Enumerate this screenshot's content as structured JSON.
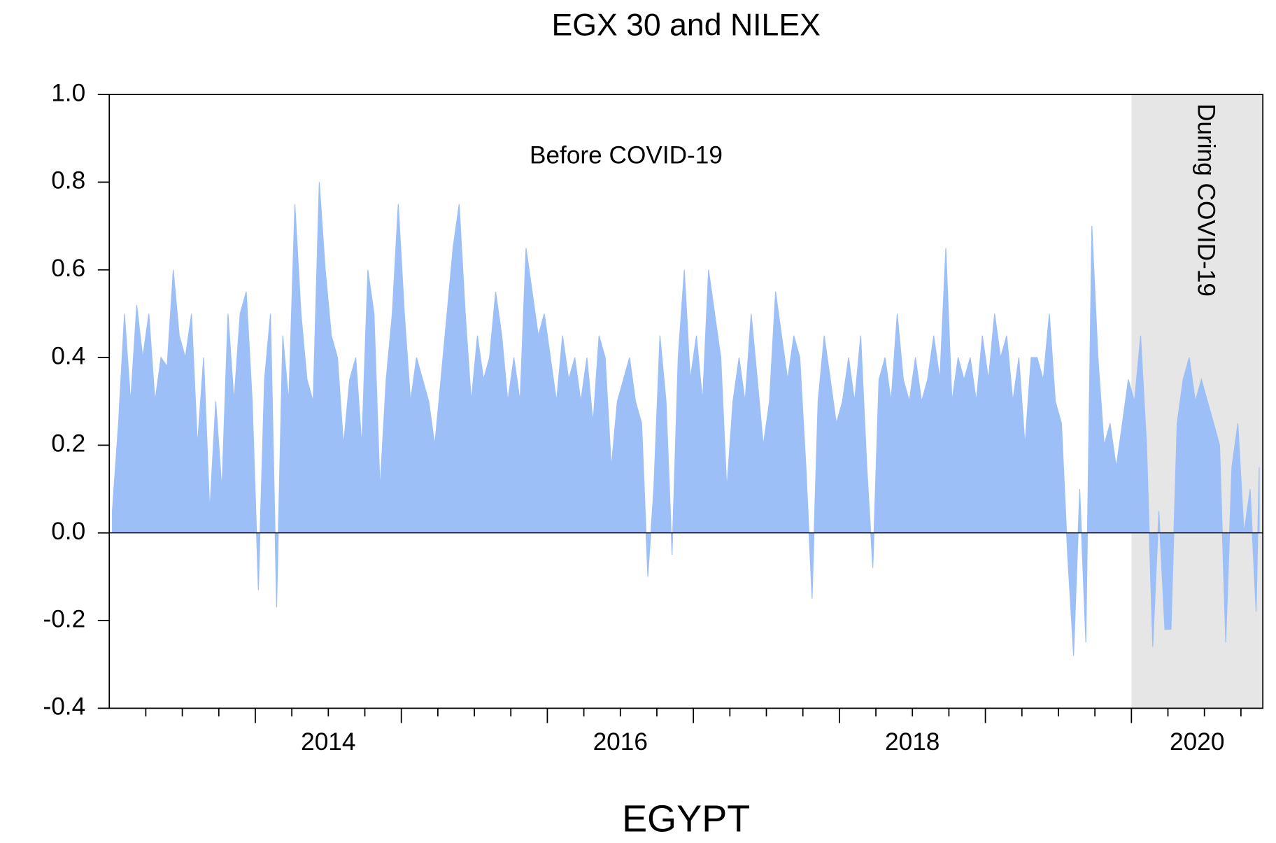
{
  "chart_data": {
    "type": "area",
    "title": "EGX 30 and NILEX",
    "x_label": "EGYPT",
    "annotations": [
      "Before COVID-19",
      "During COVID-19"
    ],
    "shade": [
      2020,
      2020.9
    ],
    "color": "#9dbff8",
    "shade_color": "#e6e6e6",
    "xlim": [
      2013,
      2020.9
    ],
    "xticks": [
      2014,
      2016,
      2018,
      2020
    ],
    "xminorticks": [
      2013.25,
      2013.5,
      2013.75,
      2014.25,
      2014.5,
      2014.75,
      2015,
      2015.25,
      2015.5,
      2015.75,
      2016.25,
      2016.5,
      2016.75,
      2017,
      2017.25,
      2017.5,
      2017.75,
      2018.25,
      2018.5,
      2018.75,
      2019,
      2019.25,
      2019.5,
      2019.75,
      2020.25,
      2020.5,
      2020.75
    ],
    "ylim": [
      -0.4,
      1
    ],
    "yticks": [
      {
        "value": 1,
        "label": "1.0"
      },
      0.8,
      0.6,
      0.4,
      0.2,
      {
        "value": 0,
        "label": "0.0"
      },
      -0.2,
      -0.4
    ],
    "x": [
      2013.021,
      2013.063,
      2013.104,
      2013.146,
      2013.188,
      2013.229,
      2013.271,
      2013.313,
      2013.354,
      2013.396,
      2013.438,
      2013.479,
      2013.521,
      2013.563,
      2013.604,
      2013.646,
      2013.688,
      2013.729,
      2013.771,
      2013.813,
      2013.854,
      2013.896,
      2013.938,
      2013.979,
      2014.021,
      2014.063,
      2014.104,
      2014.146,
      2014.188,
      2014.229,
      2014.271,
      2014.313,
      2014.354,
      2014.396,
      2014.438,
      2014.479,
      2014.521,
      2014.563,
      2014.604,
      2014.646,
      2014.688,
      2014.729,
      2014.771,
      2014.813,
      2014.854,
      2014.896,
      2014.938,
      2014.979,
      2015.021,
      2015.063,
      2015.104,
      2015.146,
      2015.188,
      2015.229,
      2015.271,
      2015.313,
      2015.354,
      2015.396,
      2015.438,
      2015.479,
      2015.521,
      2015.563,
      2015.604,
      2015.646,
      2015.688,
      2015.729,
      2015.771,
      2015.813,
      2015.854,
      2015.896,
      2015.938,
      2015.979,
      2016.021,
      2016.063,
      2016.104,
      2016.146,
      2016.188,
      2016.229,
      2016.271,
      2016.313,
      2016.354,
      2016.396,
      2016.438,
      2016.479,
      2016.521,
      2016.563,
      2016.604,
      2016.646,
      2016.688,
      2016.729,
      2016.771,
      2016.813,
      2016.854,
      2016.896,
      2016.938,
      2016.979,
      2017.021,
      2017.063,
      2017.104,
      2017.146,
      2017.188,
      2017.229,
      2017.271,
      2017.313,
      2017.354,
      2017.396,
      2017.438,
      2017.479,
      2017.521,
      2017.563,
      2017.604,
      2017.646,
      2017.688,
      2017.729,
      2017.771,
      2017.813,
      2017.854,
      2017.896,
      2017.938,
      2017.979,
      2018.021,
      2018.063,
      2018.104,
      2018.146,
      2018.188,
      2018.229,
      2018.271,
      2018.313,
      2018.354,
      2018.396,
      2018.438,
      2018.479,
      2018.521,
      2018.563,
      2018.604,
      2018.646,
      2018.688,
      2018.729,
      2018.771,
      2018.813,
      2018.854,
      2018.896,
      2018.938,
      2018.979,
      2019.021,
      2019.063,
      2019.104,
      2019.146,
      2019.188,
      2019.229,
      2019.271,
      2019.313,
      2019.354,
      2019.396,
      2019.438,
      2019.479,
      2019.521,
      2019.563,
      2019.604,
      2019.646,
      2019.688,
      2019.729,
      2019.771,
      2019.813,
      2019.854,
      2019.896,
      2019.938,
      2019.979,
      2020.021,
      2020.063,
      2020.104,
      2020.146,
      2020.188,
      2020.229,
      2020.271,
      2020.313,
      2020.354,
      2020.396,
      2020.438,
      2020.479,
      2020.521,
      2020.563,
      2020.604,
      2020.646,
      2020.688,
      2020.729,
      2020.771,
      2020.813,
      2020.854,
      2020.875
    ],
    "values": [
      0.05,
      0.25,
      0.5,
      0.3,
      0.52,
      0.4,
      0.5,
      0.3,
      0.4,
      0.38,
      0.6,
      0.45,
      0.4,
      0.5,
      0.2,
      0.4,
      0.05,
      0.3,
      0.1,
      0.5,
      0.3,
      0.5,
      0.55,
      0.3,
      -0.13,
      0.35,
      0.5,
      -0.17,
      0.45,
      0.3,
      0.75,
      0.5,
      0.35,
      0.3,
      0.8,
      0.6,
      0.45,
      0.4,
      0.2,
      0.35,
      0.4,
      0.2,
      0.6,
      0.5,
      0.1,
      0.35,
      0.5,
      0.75,
      0.5,
      0.3,
      0.4,
      0.35,
      0.3,
      0.2,
      0.35,
      0.5,
      0.65,
      0.75,
      0.5,
      0.3,
      0.45,
      0.35,
      0.4,
      0.55,
      0.45,
      0.3,
      0.4,
      0.3,
      0.65,
      0.55,
      0.45,
      0.5,
      0.4,
      0.3,
      0.45,
      0.35,
      0.4,
      0.3,
      0.4,
      0.25,
      0.45,
      0.4,
      0.15,
      0.3,
      0.35,
      0.4,
      0.3,
      0.25,
      -0.1,
      0.1,
      0.45,
      0.3,
      -0.05,
      0.4,
      0.6,
      0.35,
      0.45,
      0.3,
      0.6,
      0.5,
      0.4,
      0.1,
      0.3,
      0.4,
      0.3,
      0.5,
      0.35,
      0.2,
      0.3,
      0.55,
      0.45,
      0.35,
      0.45,
      0.4,
      0.15,
      -0.15,
      0.3,
      0.45,
      0.35,
      0.25,
      0.3,
      0.4,
      0.3,
      0.45,
      0.15,
      -0.08,
      0.35,
      0.4,
      0.3,
      0.5,
      0.35,
      0.3,
      0.4,
      0.3,
      0.35,
      0.45,
      0.35,
      0.65,
      0.3,
      0.4,
      0.35,
      0.4,
      0.3,
      0.45,
      0.35,
      0.5,
      0.4,
      0.45,
      0.3,
      0.4,
      0.2,
      0.4,
      0.4,
      0.35,
      0.5,
      0.3,
      0.25,
      -0.05,
      -0.28,
      0.1,
      -0.25,
      0.7,
      0.4,
      0.2,
      0.25,
      0.15,
      0.25,
      0.35,
      0.3,
      0.45,
      0.2,
      -0.26,
      0.05,
      -0.22,
      -0.22,
      0.25,
      0.35,
      0.4,
      0.3,
      0.35,
      0.3,
      0.25,
      0.2,
      -0.25,
      0.15,
      0.25,
      0,
      0.1,
      -0.18,
      0.15
    ]
  }
}
